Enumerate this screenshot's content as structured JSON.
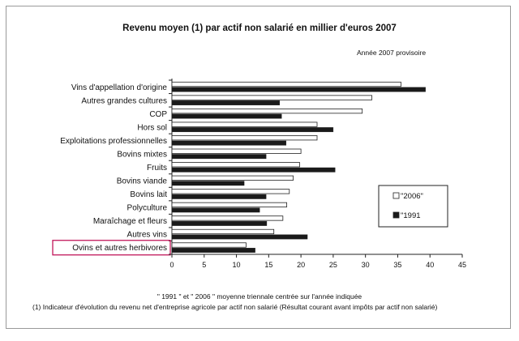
{
  "chart_data": {
    "type": "bar",
    "orientation": "horizontal",
    "title": "Revenu moyen (1)  par actif non salarié en millier d'euros 2007",
    "subtitle": "Année 2007 provisoire",
    "categories": [
      "Vins d'appellation d'origine",
      "Autres grandes cultures",
      "COP",
      "Hors sol",
      "Exploitations professionnelles",
      "Bovins mixtes",
      "Fruits",
      "Bovins viande",
      "Bovins lait",
      "Polyculture",
      "Maraîchage et fleurs",
      "Autres vins",
      "Ovins et autres herbivores"
    ],
    "highlighted_category": "Ovins et autres herbivores",
    "series": [
      {
        "name": "\"2006\"",
        "color": "#ffffff",
        "values": [
          35.5,
          31,
          29.5,
          22.5,
          22.5,
          20,
          19.8,
          18.8,
          18.2,
          17.8,
          17.2,
          15.8,
          11.5
        ]
      },
      {
        "name": "\"1991",
        "color": "#1a1a1a",
        "values": [
          39.3,
          16.7,
          17,
          25,
          17.7,
          14.6,
          25.3,
          11.2,
          14.6,
          13.6,
          14.7,
          21,
          12.9
        ]
      }
    ],
    "xlim": [
      0,
      45
    ],
    "xticks": [
      "0",
      "5",
      "10",
      "15",
      "20",
      "25",
      "30",
      "35",
      "40",
      "45"
    ],
    "legend_position": "right",
    "xlabel": "",
    "ylabel": ""
  },
  "notes": {
    "line1": "\"  1991  \" et \" 2006 \"  moyenne triennale centrée sur l'année indiquée",
    "line2": "(1) Indicateur d'évolution du revenu net d'entreprise agricole par actif non salarié (Résultat courant avant impôts par actif non salarié)"
  }
}
